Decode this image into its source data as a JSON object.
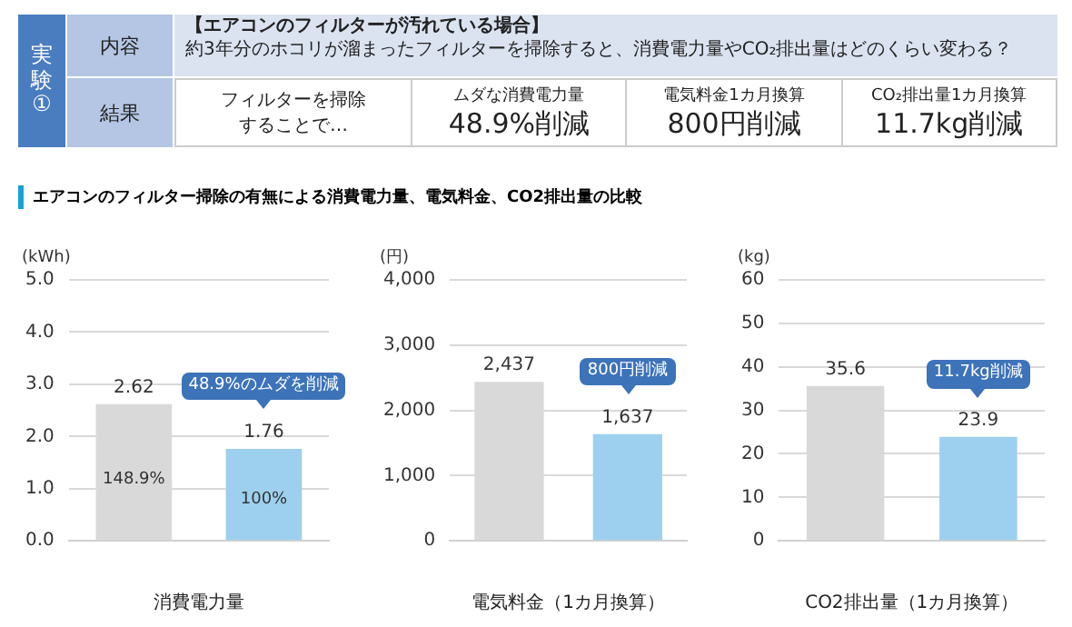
{
  "chart_data": [
    {
      "type": "other",
      "title": "実験①",
      "annotations": [
        "内容",
        "【エアコンのフィルターが汚れている場合】",
        "約3年分のホコリが溜まったフィルターを掃除すると、消費電力量やCO₂排出量はどのくらい変わる？",
        "結果",
        "フィルターを掃除することで…",
        "ムダな消費電力量",
        "48.9%削減",
        "電気料金1カ月換算",
        "800円削減",
        "CO₂排出量1カ月換算",
        "11.7kg削減",
        "エアコンのフィルター掃除の有無による消費電力量、電気料金、CO2排出量の比較"
      ]
    },
    {
      "type": "bar",
      "categories": [
        null,
        null
      ],
      "values": [
        2.62,
        1.76
      ],
      "colors": [
        "#d9d9d9",
        "#9dd0ee"
      ],
      "ylabel": "(kWh)",
      "xlabel": "消費電力量",
      "ylim": [
        0,
        5
      ],
      "yticks": [
        {
          "value": 0,
          "label": "0.0"
        },
        {
          "value": 1,
          "label": "1.0"
        },
        {
          "value": 2,
          "label": "2.0"
        },
        {
          "value": 3,
          "label": "3.0"
        },
        {
          "value": 4,
          "label": "4.0"
        },
        {
          "value": 5,
          "label": "5.0"
        }
      ],
      "grid": "y",
      "data_labels": true,
      "annotations": [
        "148.9%",
        "100%",
        "48.9%のムダを削減"
      ]
    },
    {
      "type": "bar",
      "categories": [
        null,
        null
      ],
      "values": [
        2437,
        1637
      ],
      "colors": [
        "#d9d9d9",
        "#9dd0ee"
      ],
      "ylabel": "(円)",
      "xlabel": "電気料金（1カ月換算）",
      "ylim": [
        0,
        4000
      ],
      "yticks": [
        {
          "value": 0,
          "label": "0"
        },
        {
          "value": 1000,
          "label": "1,000"
        },
        {
          "value": 2000,
          "label": "2,000"
        },
        {
          "value": 3000,
          "label": "3,000"
        },
        {
          "value": 4000,
          "label": "4,000"
        }
      ],
      "grid": "y",
      "value_labels": [
        "2,437",
        "1,637"
      ],
      "annotations": [
        "800円削減"
      ]
    },
    {
      "type": "bar",
      "categories": [
        null,
        null
      ],
      "values": [
        35.6,
        23.9
      ],
      "colors": [
        "#d9d9d9",
        "#9dd0ee"
      ],
      "ylabel": "(kg)",
      "xlabel": "CO2排出量（1カ月換算）",
      "ylim": [
        0,
        60
      ],
      "yticks": [
        0,
        10,
        20,
        30,
        40,
        50,
        60
      ],
      "grid": "y",
      "data_labels": true,
      "annotations": [
        "11.7kg削減"
      ]
    }
  ]
}
